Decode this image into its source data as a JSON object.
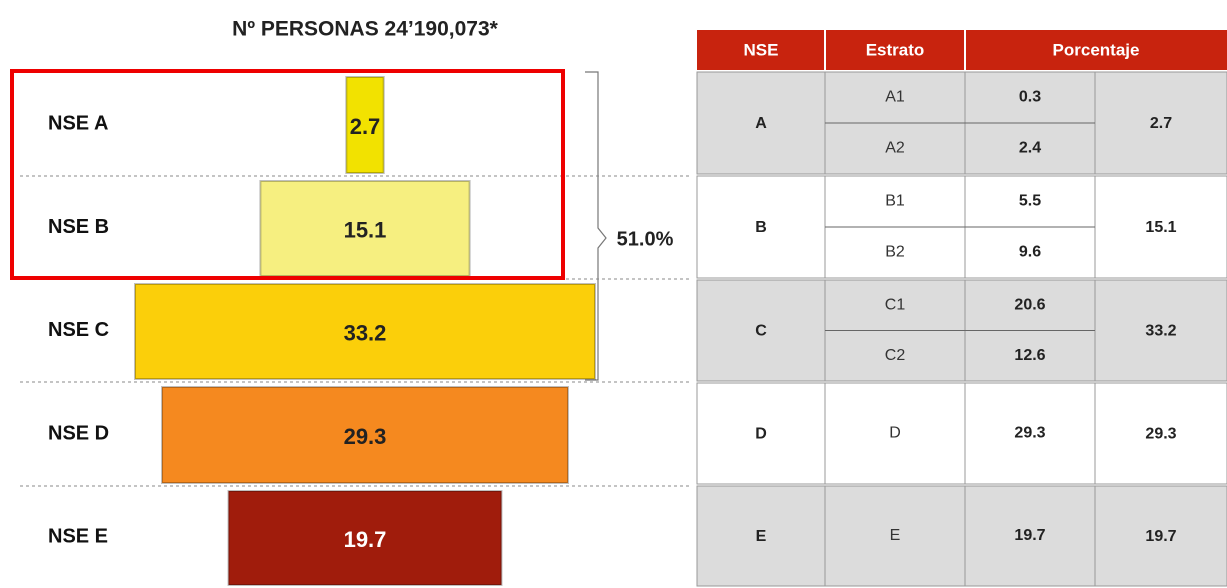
{
  "chart_data": {
    "type": "pyramid",
    "title": "Nº PERSONAS 24’190,073*",
    "categories": [
      "NSE A",
      "NSE B",
      "NSE C",
      "NSE D",
      "NSE E"
    ],
    "values": [
      2.7,
      15.1,
      33.2,
      29.3,
      19.7
    ],
    "colors": [
      "#f2e200",
      "#f6ef80",
      "#fbcf0a",
      "#f5891f",
      "#a01c0c"
    ],
    "annotation": "51.0%"
  },
  "table": {
    "header": [
      "NSE",
      "Estrato",
      "Porcentaje"
    ],
    "groups": [
      {
        "nse": "A",
        "strata": [
          {
            "name": "A1",
            "value": 0.3
          },
          {
            "name": "A2",
            "value": 2.4
          }
        ],
        "total": 2.7
      },
      {
        "nse": "B",
        "strata": [
          {
            "name": "B1",
            "value": 5.5
          },
          {
            "name": "B2",
            "value": 9.6
          }
        ],
        "total": 15.1
      },
      {
        "nse": "C",
        "strata": [
          {
            "name": "C1",
            "value": 20.6
          },
          {
            "name": "C2",
            "value": 12.6
          }
        ],
        "total": 33.2
      },
      {
        "nse": "D",
        "strata": [
          {
            "name": "D",
            "value": 29.3
          }
        ],
        "total": 29.3
      },
      {
        "nse": "E",
        "strata": [
          {
            "name": "E",
            "value": 19.7
          }
        ],
        "total": 19.7
      }
    ]
  }
}
